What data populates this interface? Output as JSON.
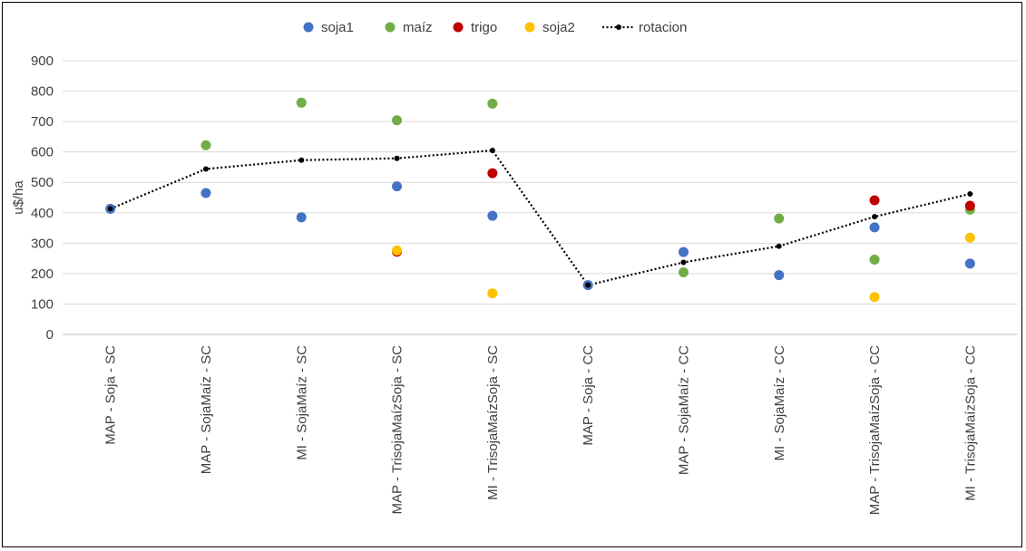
{
  "chart_data": {
    "type": "scatter",
    "title": "",
    "xlabel": "",
    "ylabel": "u$/ha",
    "ylim": [
      0,
      900
    ],
    "yticks": [
      0,
      100,
      200,
      300,
      400,
      500,
      600,
      700,
      800,
      900
    ],
    "grid": true,
    "legend_position": "top-center",
    "categories": [
      "MAP - Soja - SC",
      "MAP - SojaMaíz - SC",
      "MI - SojaMaíz - SC",
      "MAP - TrisojaMaízSoja - SC",
      "MI - TrisojaMaízSoja - SC",
      "MAP - Soja - CC",
      "MAP - SojaMaíz - CC",
      "MI - SojaMaíz - CC",
      "MAP - TrisojaMaízSoja - CC",
      "MI - TrisojaMaízSoja - CC"
    ],
    "series": [
      {
        "name": "soja1",
        "color": "#4472C4",
        "marker": "circle",
        "values": [
          413,
          465,
          385,
          487,
          390,
          162,
          271,
          195,
          352,
          233
        ]
      },
      {
        "name": "maíz",
        "color": "#70AD47",
        "marker": "circle",
        "values": [
          null,
          622,
          762,
          704,
          759,
          null,
          204,
          381,
          246,
          410
        ]
      },
      {
        "name": "trigo",
        "color": "#C00000",
        "marker": "circle",
        "values": [
          null,
          null,
          null,
          272,
          530,
          null,
          null,
          null,
          441,
          423
        ]
      },
      {
        "name": "soja2",
        "color": "#FFC000",
        "marker": "circle",
        "values": [
          null,
          null,
          null,
          276,
          135,
          null,
          null,
          null,
          123,
          318
        ]
      },
      {
        "name": "rotacion",
        "color": "#000000",
        "marker": "small-dot",
        "line": "dotted",
        "values": [
          413,
          544,
          573,
          579,
          605,
          162,
          237,
          290,
          387,
          462
        ]
      }
    ]
  }
}
